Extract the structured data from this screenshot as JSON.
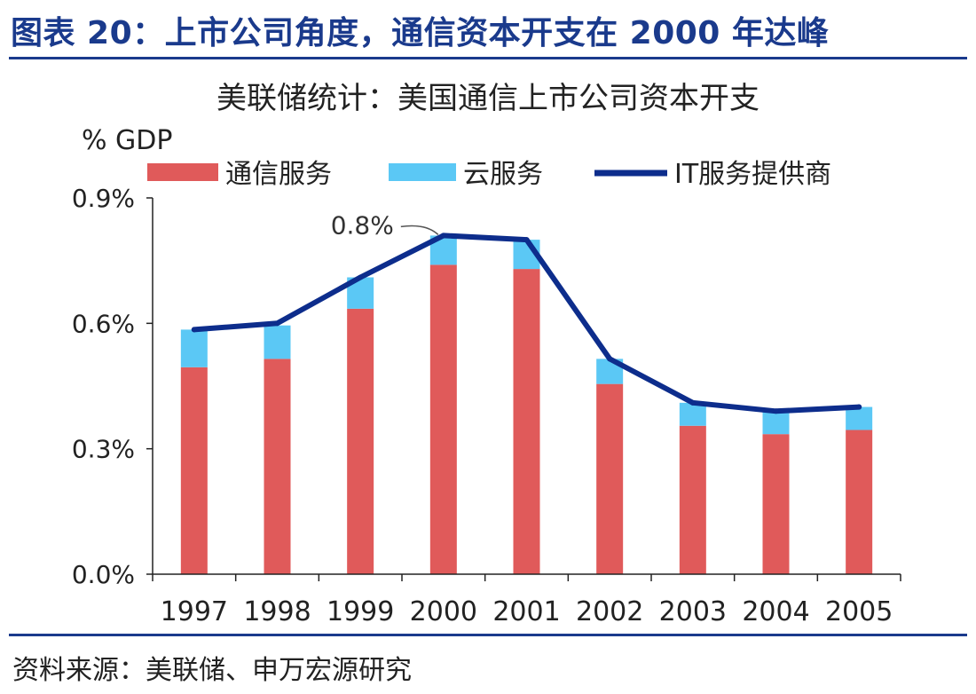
{
  "header": {
    "title": "图表 20：上市公司角度，通信资本开支在 2000 年达峰"
  },
  "source_note": "资料来源：美联储、申万宏源研究",
  "colors": {
    "telecom": "#e05a5a",
    "cloud": "#5bc8f5",
    "it_line": "#0d2d8c",
    "axis": "#222222",
    "header": "#1a3a8c"
  },
  "chart_data": {
    "type": "bar",
    "stacked": true,
    "title": "美联储统计：美国通信上市公司资本开支",
    "ylabel": "% GDP",
    "xlabel": "",
    "categories": [
      "1997",
      "1998",
      "1999",
      "2000",
      "2001",
      "2002",
      "2003",
      "2004",
      "2005"
    ],
    "series": [
      {
        "name": "通信服务",
        "kind": "bar",
        "values": [
          0.495,
          0.515,
          0.635,
          0.74,
          0.73,
          0.455,
          0.355,
          0.335,
          0.345
        ]
      },
      {
        "name": "云服务",
        "kind": "bar",
        "values": [
          0.09,
          0.08,
          0.075,
          0.07,
          0.07,
          0.06,
          0.055,
          0.055,
          0.055
        ]
      },
      {
        "name": "IT服务提供商",
        "kind": "line",
        "values": [
          0.585,
          0.6,
          0.71,
          0.81,
          0.8,
          0.515,
          0.41,
          0.39,
          0.4
        ]
      }
    ],
    "ylim": [
      0,
      0.9
    ],
    "yticks": [
      "0.0%",
      "0.3%",
      "0.6%",
      "0.9%"
    ],
    "ytick_values": [
      0,
      0.3,
      0.6,
      0.9
    ],
    "annotations": [
      {
        "text": "0.8%",
        "category": "2000",
        "value": 0.81
      }
    ],
    "legend_position": "top"
  }
}
